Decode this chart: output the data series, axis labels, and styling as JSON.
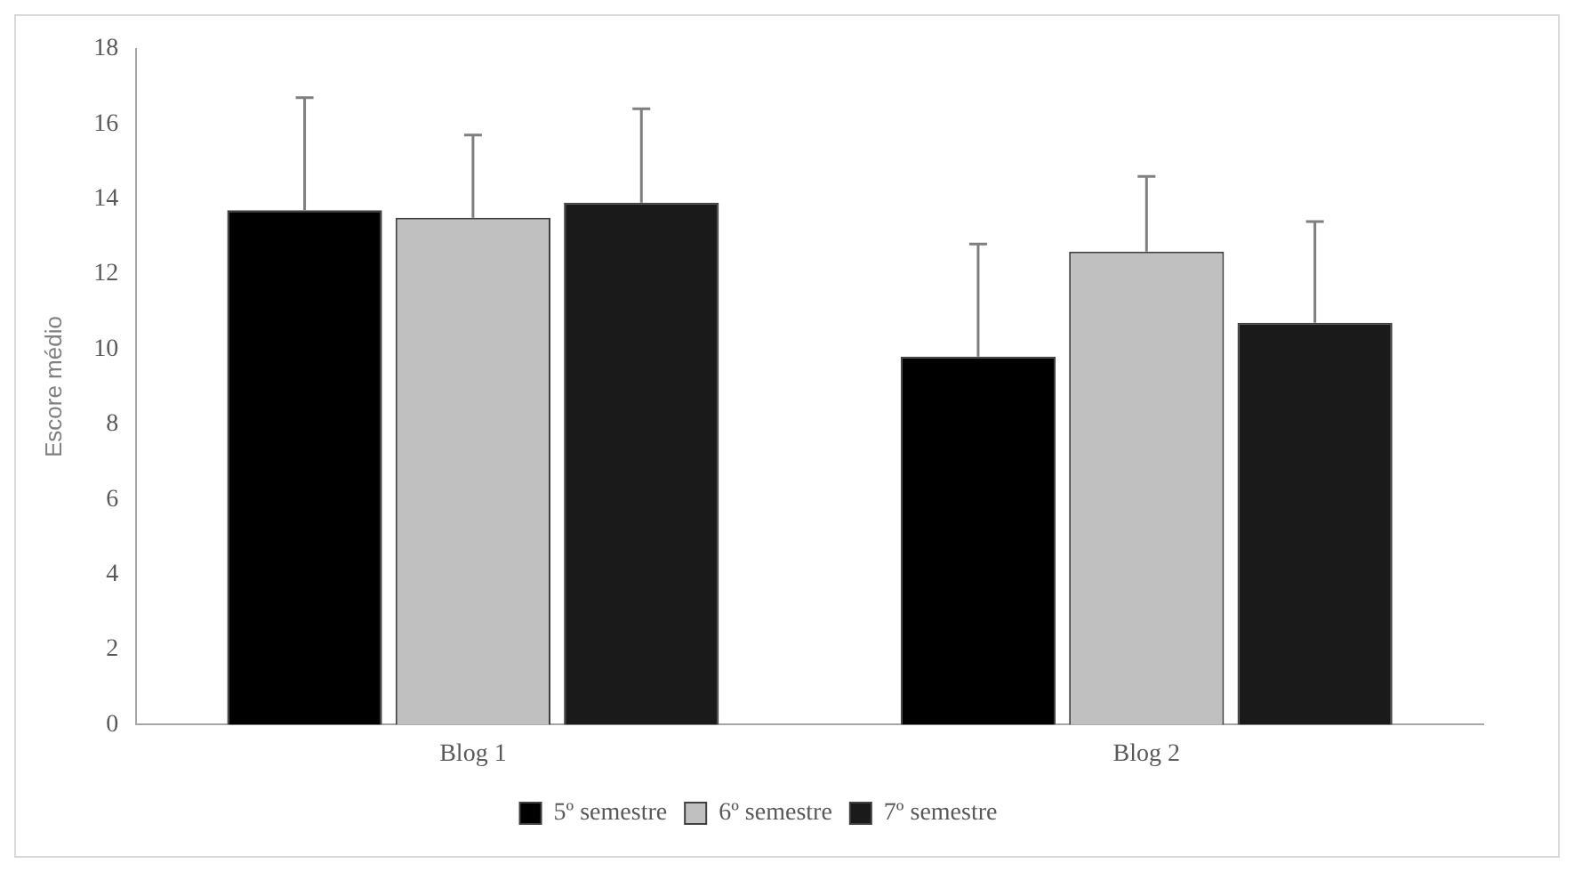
{
  "chart_data": {
    "type": "bar",
    "ylabel": "Escore médio",
    "categories": [
      "Blog 1",
      "Blog 2"
    ],
    "series": [
      {
        "name": "5º semestre",
        "color": "#000000",
        "values": [
          13.7,
          9.8
        ],
        "errors": [
          [
            13.7,
            16.7
          ],
          [
            9.8,
            12.8
          ]
        ]
      },
      {
        "name": "6º semestre",
        "color": "#c0c0c0",
        "values": [
          13.5,
          12.6
        ],
        "errors": [
          [
            13.5,
            15.7
          ],
          [
            12.6,
            14.6
          ]
        ]
      },
      {
        "name": "7º semestre",
        "color": "#1a1a1a",
        "values": [
          13.9,
          10.7
        ],
        "errors": [
          [
            13.9,
            16.4
          ],
          [
            10.7,
            13.4
          ]
        ]
      }
    ],
    "ylim": [
      0,
      18
    ],
    "yticks": [
      0,
      2,
      4,
      6,
      8,
      10,
      12,
      14,
      16,
      18
    ],
    "grid": false,
    "legend": "bottom"
  }
}
